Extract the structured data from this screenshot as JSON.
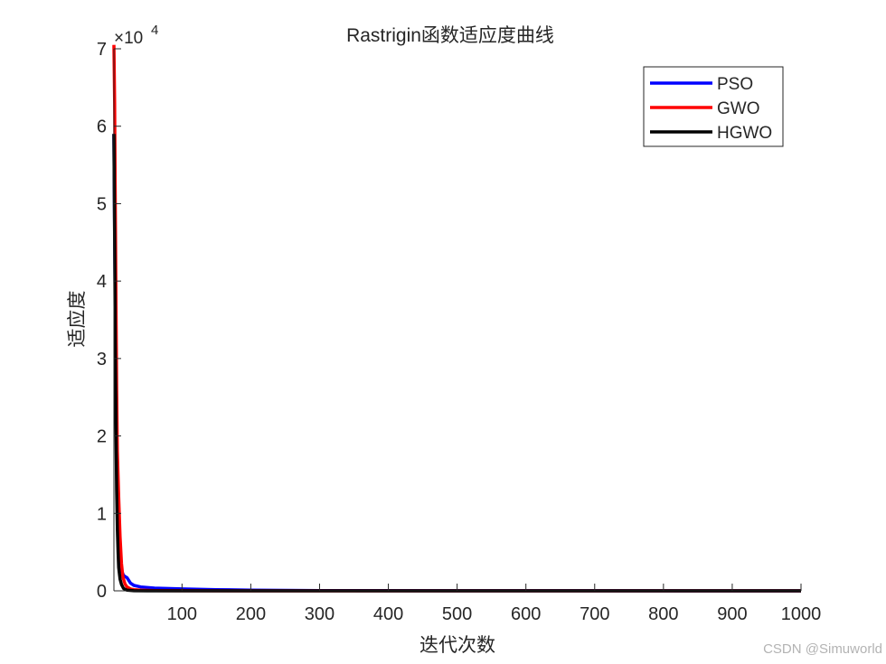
{
  "chart_data": {
    "type": "line",
    "title": "Rastrigin函数适应度曲线",
    "xlabel": "迭代次数",
    "ylabel": "适应度",
    "exponent_label": "×10",
    "exponent_power": "4",
    "xlim": [
      1,
      1000
    ],
    "ylim": [
      0,
      70000
    ],
    "xticks": [
      100,
      200,
      300,
      400,
      500,
      600,
      700,
      800,
      900,
      1000
    ],
    "xtick_labels": [
      "100",
      "200",
      "300",
      "400",
      "500",
      "600",
      "700",
      "800",
      "900",
      "1000"
    ],
    "yticks": [
      0,
      10000,
      20000,
      30000,
      40000,
      50000,
      60000,
      70000
    ],
    "ytick_labels": [
      "0",
      "1",
      "2",
      "3",
      "4",
      "5",
      "6",
      "7"
    ],
    "grid": false,
    "legend_position": "top-right",
    "series": [
      {
        "name": "PSO",
        "color": "#0000ff",
        "x": [
          1,
          2,
          3,
          4,
          5,
          6,
          8,
          10,
          12,
          15,
          18,
          20,
          25,
          30,
          40,
          60,
          100,
          150,
          200,
          300,
          500,
          1000
        ],
        "y": [
          59000,
          46000,
          36000,
          27000,
          19000,
          12500,
          6500,
          3600,
          2600,
          2000,
          1800,
          1700,
          1000,
          700,
          500,
          350,
          250,
          150,
          90,
          40,
          15,
          5
        ]
      },
      {
        "name": "GWO",
        "color": "#ff0000",
        "x": [
          1,
          2,
          3,
          4,
          5,
          6,
          8,
          10,
          12,
          14,
          17,
          20,
          25,
          30,
          40,
          60,
          100,
          200,
          1000
        ],
        "y": [
          70500,
          63000,
          50000,
          37000,
          26000,
          18000,
          12000,
          7000,
          3500,
          1800,
          900,
          500,
          250,
          150,
          80,
          40,
          15,
          5,
          0
        ]
      },
      {
        "name": "HGWO",
        "color": "#000000",
        "x": [
          1,
          2,
          3,
          4,
          5,
          6,
          7,
          8,
          10,
          12,
          15,
          20,
          30,
          50,
          1000
        ],
        "y": [
          59000,
          45000,
          32000,
          21000,
          13000,
          8000,
          5000,
          3000,
          1500,
          800,
          300,
          80,
          10,
          0,
          0
        ]
      }
    ]
  },
  "watermark": "CSDN @Simuworld"
}
